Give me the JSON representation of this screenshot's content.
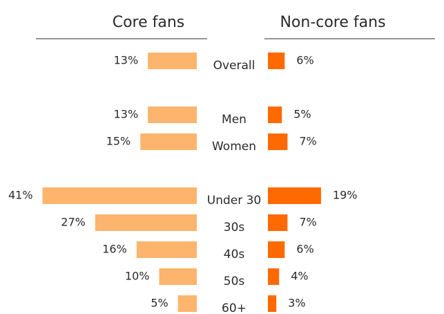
{
  "chart_data": {
    "type": "butterfly",
    "categories": [
      "Overall",
      "Men",
      "Women",
      "Under 30",
      "30s",
      "40s",
      "50s",
      "60+"
    ],
    "series": [
      {
        "name": "Core fans",
        "color": "#fdb46c",
        "values": [
          13,
          13,
          15,
          41,
          27,
          16,
          10,
          5
        ],
        "value_labels": [
          "13%",
          "13%",
          "15%",
          "41%",
          "27%",
          "16%",
          "10%",
          "5%"
        ]
      },
      {
        "name": "Non-core fans",
        "color": "#ff6a00",
        "values": [
          6,
          5,
          7,
          19,
          7,
          6,
          4,
          3
        ],
        "value_labels": [
          "6%",
          "5%",
          "7%",
          "19%",
          "7%",
          "6%",
          "4%",
          "3%"
        ]
      }
    ]
  }
}
